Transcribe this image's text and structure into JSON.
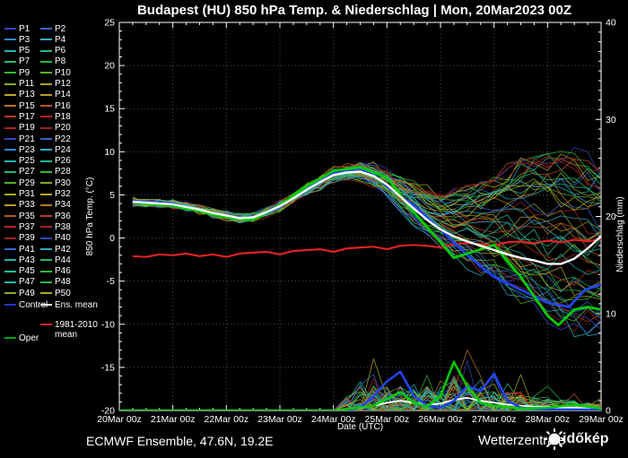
{
  "title": "Budapest  (HU)  850 hPa Temp. & Niederschlag | Mon, 20Mar2023 00Z",
  "footer": {
    "left": "ECMWF Ensemble, 47.6N, 19.2E",
    "watermark_main": "Wetterzentrale",
    "watermark_overlay": "időkép"
  },
  "legend": {
    "members": [
      {
        "label": "P1",
        "color": "#3344bb"
      },
      {
        "label": "P2",
        "color": "#3366cc"
      },
      {
        "label": "P3",
        "color": "#3388cc"
      },
      {
        "label": "P4",
        "color": "#33aacc"
      },
      {
        "label": "P5",
        "color": "#22b3b3"
      },
      {
        "label": "P6",
        "color": "#22bb99"
      },
      {
        "label": "P7",
        "color": "#22bb77"
      },
      {
        "label": "P8",
        "color": "#22bb44"
      },
      {
        "label": "P9",
        "color": "#33bb33"
      },
      {
        "label": "P10",
        "color": "#55b322"
      },
      {
        "label": "P11",
        "color": "#88aa22"
      },
      {
        "label": "P12",
        "color": "#aaaa22"
      },
      {
        "label": "P13",
        "color": "#bbaa22"
      },
      {
        "label": "P14",
        "color": "#bb9922"
      },
      {
        "label": "P15",
        "color": "#bb7722"
      },
      {
        "label": "P16",
        "color": "#bb5522"
      },
      {
        "label": "P17",
        "color": "#bb3b22"
      },
      {
        "label": "P18",
        "color": "#bb2222"
      },
      {
        "label": "P19",
        "color": "#aa2222"
      },
      {
        "label": "P20",
        "color": "#992222"
      },
      {
        "label": "P21",
        "color": "#3344bb"
      },
      {
        "label": "P22",
        "color": "#3366cc"
      },
      {
        "label": "P23",
        "color": "#3388cc"
      },
      {
        "label": "P24",
        "color": "#33aacc"
      },
      {
        "label": "P25",
        "color": "#22b3b3"
      },
      {
        "label": "P26",
        "color": "#22bb99"
      },
      {
        "label": "P27",
        "color": "#22bb77"
      },
      {
        "label": "P28",
        "color": "#33bb33"
      },
      {
        "label": "P29",
        "color": "#55b322"
      },
      {
        "label": "P30",
        "color": "#88aa22"
      },
      {
        "label": "P31",
        "color": "#aaaa22"
      },
      {
        "label": "P32",
        "color": "#bbaa22"
      },
      {
        "label": "P33",
        "color": "#bb9922"
      },
      {
        "label": "P34",
        "color": "#bb7722"
      },
      {
        "label": "P35",
        "color": "#bb5522"
      },
      {
        "label": "P36",
        "color": "#bb3b22"
      },
      {
        "label": "P37",
        "color": "#bb2222"
      },
      {
        "label": "P38",
        "color": "#aa2222"
      },
      {
        "label": "P39",
        "color": "#992222"
      },
      {
        "label": "P40",
        "color": "#3344bb"
      },
      {
        "label": "P41",
        "color": "#3366cc"
      },
      {
        "label": "P42",
        "color": "#33aacc"
      },
      {
        "label": "P43",
        "color": "#22b3b3"
      },
      {
        "label": "P44",
        "color": "#22bb77"
      },
      {
        "label": "P45",
        "color": "#22bb99"
      },
      {
        "label": "P46",
        "color": "#33bb33"
      },
      {
        "label": "P47",
        "color": "#22b3b3"
      },
      {
        "label": "P48",
        "color": "#22bb44"
      },
      {
        "label": "P49",
        "color": "#88aa22"
      },
      {
        "label": "P50",
        "color": "#aaaa22"
      }
    ],
    "special": [
      {
        "label": "Control",
        "color": "#2233cc"
      },
      {
        "label": "Ens. mean",
        "color": "#ffffff"
      },
      {
        "label": "1981-2010 mean",
        "color": "#dd2222"
      },
      {
        "label": "Oper",
        "color": "#00aa00"
      }
    ]
  },
  "chart_data": {
    "type": "line",
    "title": "Budapest (HU) 850 hPa Temp. & Niederschlag | Mon, 20Mar2023 00Z",
    "xlabel": "Date (UTC)",
    "ylabel_left": "850 hPa Temp. (°C)",
    "ylabel_right": "Niederschlag (mm)",
    "x_ticks": [
      "20Mar 00z",
      "21Mar 00z",
      "22Mar 00z",
      "23Mar 00z",
      "24Mar 00z",
      "25Mar 00z",
      "26Mar 00z",
      "27Mar 00z",
      "28Mar 00z",
      "29Mar 00z"
    ],
    "x_days": [
      0,
      9
    ],
    "ylim_left": [
      -20,
      25
    ],
    "yticks_left": [
      25,
      20,
      15,
      10,
      5,
      0,
      -5,
      -10,
      -15,
      -20
    ],
    "ylim_right": [
      0,
      40
    ],
    "yticks_right": [
      40,
      30,
      20,
      10,
      0
    ],
    "grid": true,
    "n_members": 50,
    "colors": {
      "control_line": "#2244ee",
      "oper_line": "#00cc00",
      "mean_line": "#ffffff",
      "clim_line": "#dd2222",
      "gridline": "#808080",
      "axis": "#ffffff"
    },
    "series": {
      "ens_mean_temp": {
        "x": [
          0.25,
          0.5,
          0.75,
          1,
          1.25,
          1.5,
          1.75,
          2,
          2.25,
          2.5,
          2.75,
          3,
          3.25,
          3.5,
          3.75,
          4,
          4.25,
          4.5,
          4.75,
          5,
          5.25,
          5.5,
          5.75,
          6,
          6.25,
          6.5,
          6.75,
          7,
          7.25,
          7.5,
          7.75,
          8,
          8.25,
          8.5,
          8.75,
          9
        ],
        "y": [
          4.2,
          4.1,
          4.0,
          3.9,
          3.6,
          3.3,
          2.9,
          2.6,
          2.3,
          2.4,
          3.0,
          3.7,
          4.6,
          5.6,
          6.5,
          7.3,
          7.6,
          7.7,
          7.2,
          6.2,
          4.8,
          3.4,
          2.1,
          1.0,
          0.2,
          -0.4,
          -0.9,
          -1.4,
          -1.9,
          -2.3,
          -2.6,
          -3.0,
          -3.0,
          -2.4,
          -1.2,
          0.2
        ]
      },
      "control_temp": {
        "x": [
          0.25,
          0.5,
          1,
          1.5,
          2,
          2.5,
          3,
          3.5,
          4,
          4.5,
          4.75,
          5,
          5.5,
          6,
          6.5,
          7,
          7.5,
          8,
          8.4,
          8.7,
          9
        ],
        "y": [
          4.3,
          4.2,
          4.0,
          3.2,
          2.5,
          2.2,
          3.6,
          5.8,
          7.6,
          8.0,
          7.4,
          6.0,
          3.8,
          1.0,
          -2.0,
          -4.5,
          -6.0,
          -7.5,
          -8.0,
          -6.0,
          -5.4
        ]
      },
      "oper_temp": {
        "x": [
          0.25,
          0.5,
          1,
          1.5,
          2,
          2.5,
          3,
          3.5,
          4,
          4.5,
          5,
          5.5,
          6,
          6.25,
          6.5,
          7,
          7.5,
          8,
          8.2,
          8.5,
          8.75,
          9
        ],
        "y": [
          4.2,
          4.0,
          3.8,
          3.1,
          2.4,
          2.1,
          3.8,
          6.0,
          7.8,
          8.2,
          7.0,
          3.0,
          -0.5,
          -2.3,
          -1.8,
          -0.8,
          -4.5,
          -9.0,
          -10.1,
          -8.3,
          -8.0,
          -8.3
        ]
      },
      "clim_mean_temp": {
        "x": [
          0.25,
          0.5,
          0.75,
          1,
          1.25,
          1.5,
          1.75,
          2,
          2.25,
          2.5,
          2.75,
          3,
          3.25,
          3.5,
          3.75,
          4,
          4.25,
          4.5,
          4.75,
          5,
          5.25,
          5.5,
          5.75,
          6,
          6.25,
          6.5,
          6.75,
          7,
          7.25,
          7.5,
          7.75,
          8,
          8.25,
          8.5,
          8.75,
          9
        ],
        "y": [
          -2.1,
          -2.2,
          -1.9,
          -2.0,
          -1.8,
          -2.1,
          -1.9,
          -2.2,
          -1.8,
          -1.7,
          -1.6,
          -1.9,
          -1.5,
          -1.4,
          -1.3,
          -1.6,
          -1.2,
          -1.1,
          -1.0,
          -1.3,
          -0.9,
          -0.8,
          -0.9,
          -1.1,
          -0.7,
          -0.6,
          -0.7,
          -0.9,
          -0.5,
          -0.4,
          -0.6,
          -0.3,
          -0.5,
          -0.2,
          -0.4,
          -0.1
        ]
      },
      "ens_mean_precip": {
        "x": [
          0,
          4,
          4.5,
          4.75,
          5,
          5.25,
          5.5,
          5.75,
          6,
          6.25,
          6.5,
          6.75,
          7,
          7.25,
          7.5,
          7.75,
          8,
          8.25,
          8.5,
          8.75,
          9
        ],
        "y": [
          0,
          0,
          0.2,
          0.5,
          0.8,
          1.0,
          0.8,
          0.6,
          0.7,
          1.1,
          1.3,
          1.0,
          0.8,
          0.6,
          0.5,
          0.4,
          0.4,
          0.3,
          0.3,
          0.2,
          0.2
        ]
      },
      "control_precip": {
        "x": [
          0,
          4,
          4.25,
          4.5,
          4.75,
          5,
          5.25,
          5.5,
          5.75,
          6,
          6.25,
          6.5,
          6.75,
          7,
          7.25,
          7.5,
          7.75,
          8,
          8.5,
          9
        ],
        "y": [
          0,
          0,
          0,
          0.3,
          1.5,
          3.0,
          4.0,
          1.5,
          0.5,
          0.3,
          1.0,
          2.5,
          2.0,
          3.8,
          1.0,
          0.3,
          0.2,
          0.1,
          0.1,
          0.1
        ]
      },
      "oper_precip": {
        "x": [
          0,
          4,
          4.5,
          4.75,
          5,
          5.25,
          5.5,
          5.75,
          6,
          6.25,
          6.5,
          6.75,
          7,
          7.5,
          8,
          8.5,
          9
        ],
        "y": [
          0,
          0,
          0.3,
          0.5,
          1.2,
          1.9,
          0.8,
          0.4,
          1.5,
          5.0,
          2.5,
          0.8,
          0.5,
          0.2,
          0.3,
          0.6,
          0.2
        ]
      }
    },
    "ensemble_temp_envelope": {
      "x": [
        0.25,
        0.5,
        1,
        1.5,
        2,
        2.5,
        3,
        3.5,
        4,
        4.5,
        5,
        5.5,
        6,
        6.5,
        7,
        7.5,
        8,
        8.5,
        9
      ],
      "min": [
        3.6,
        3.4,
        3.0,
        2.2,
        1.2,
        1.0,
        2.0,
        3.5,
        5.0,
        5.0,
        3.0,
        0.5,
        -2.5,
        -4.5,
        -6.5,
        -8.5,
        -11,
        -12,
        -13
      ],
      "max": [
        4.9,
        4.8,
        4.6,
        4.2,
        3.6,
        3.8,
        5.2,
        7.2,
        9.2,
        10.0,
        9.5,
        8.5,
        7.5,
        8.0,
        9.0,
        10.0,
        10.7,
        10.5,
        9.5
      ]
    },
    "ensemble_precip_profile": {
      "start_day": 4.25,
      "max_spike_mm": 11.5,
      "x": [
        4.25,
        4.5,
        5,
        5.5,
        6,
        6.25,
        6.5,
        7,
        7.5,
        8,
        8.5,
        9
      ],
      "amp": [
        1.5,
        3.0,
        2.5,
        2.8,
        2.5,
        3.6,
        3.0,
        2.0,
        1.8,
        1.2,
        1.0,
        0.6
      ]
    }
  }
}
